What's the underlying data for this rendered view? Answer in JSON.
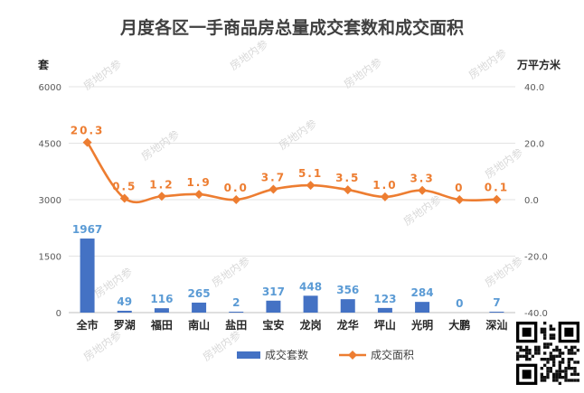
{
  "chart_data": {
    "type": "bar",
    "title": "月度各区一手商品房总量成交套数和成交面积",
    "categories": [
      "全市",
      "罗湖",
      "福田",
      "南山",
      "盐田",
      "宝安",
      "龙岗",
      "龙华",
      "坪山",
      "光明",
      "大鹏",
      "深汕"
    ],
    "series": [
      {
        "name": "成交套数",
        "type": "bar",
        "axis": "left",
        "color": "#4472c4",
        "values": [
          1967,
          49,
          116,
          265,
          2,
          317,
          448,
          356,
          123,
          284,
          0,
          7
        ],
        "labels": [
          "1967",
          "49",
          "116",
          "265",
          "2",
          "317",
          "448",
          "356",
          "123",
          "284",
          "0",
          "7"
        ]
      },
      {
        "name": "成交面积",
        "type": "line",
        "axis": "right",
        "color": "#ed7d31",
        "values": [
          20.3,
          0.5,
          1.2,
          1.9,
          0.0,
          3.7,
          5.1,
          3.5,
          1.0,
          3.3,
          0,
          0.1
        ],
        "labels": [
          "20.3",
          "0.5",
          "1.2",
          "1.9",
          "0.0",
          "3.7",
          "5.1",
          "3.5",
          "1.0",
          "3.3",
          "0",
          "0.1"
        ]
      }
    ],
    "y_left": {
      "label": "套",
      "ylim": [
        0,
        6000
      ],
      "ticks": [
        "0",
        "1500",
        "3000",
        "4500",
        "6000"
      ]
    },
    "y_right": {
      "label": "万平方米",
      "ylim": [
        -40,
        40
      ],
      "ticks": [
        "-40.0",
        "-20.0",
        "0.0",
        "20.0",
        "40.0"
      ]
    },
    "grid": true,
    "legend_position": "bottom"
  },
  "watermark": "房地内参"
}
